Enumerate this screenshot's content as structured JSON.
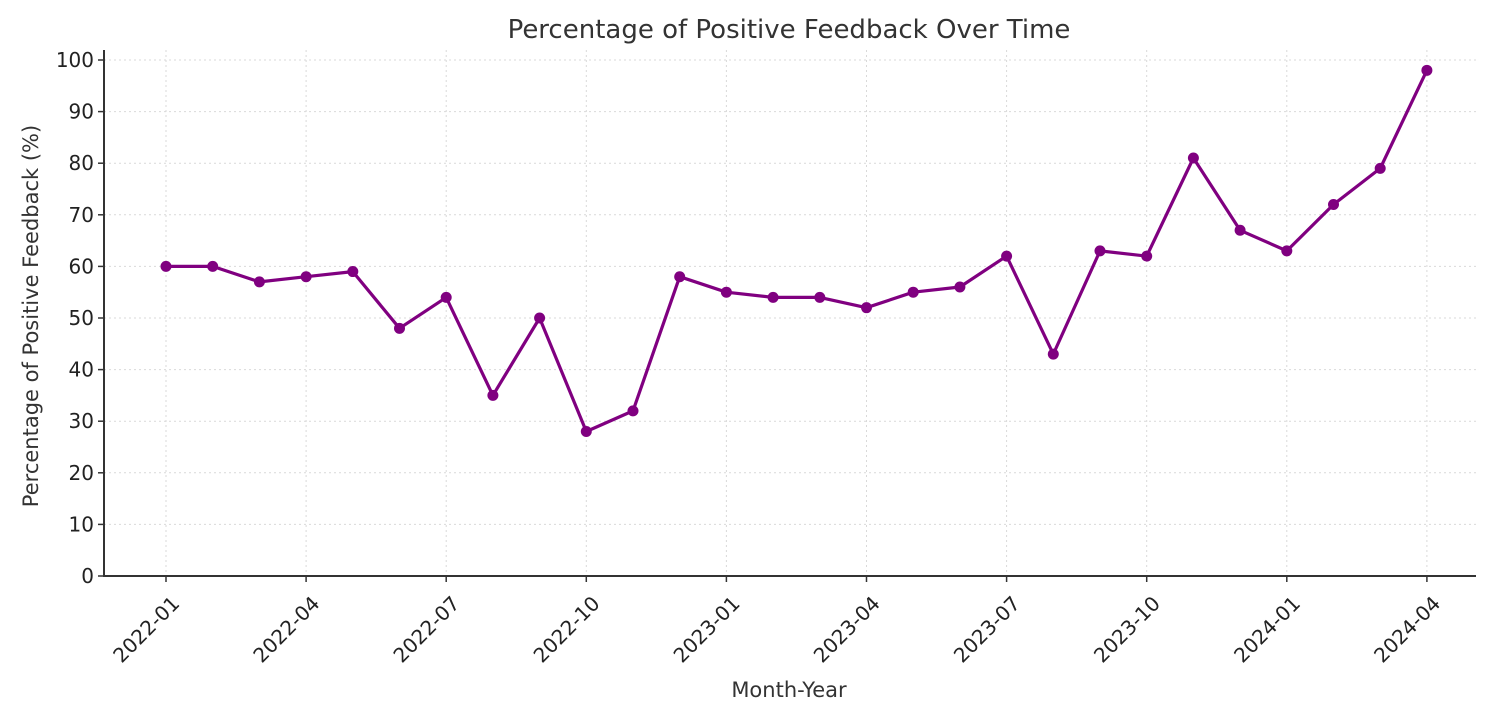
{
  "chart_data": {
    "type": "line",
    "title": "Percentage of Positive Feedback Over Time",
    "xlabel": "Month-Year",
    "ylabel": "Percentage of Positive Feedback (%)",
    "ylim": [
      0,
      100
    ],
    "yticks": [
      0,
      10,
      20,
      30,
      40,
      50,
      60,
      70,
      80,
      90,
      100
    ],
    "xticks": [
      "2022-01",
      "2022-04",
      "2022-07",
      "2022-10",
      "2023-01",
      "2023-04",
      "2023-07",
      "2023-10",
      "2024-01",
      "2024-04"
    ],
    "grid": true,
    "color": "#800080",
    "x": [
      "2022-01",
      "2022-02",
      "2022-03",
      "2022-04",
      "2022-05",
      "2022-06",
      "2022-07",
      "2022-08",
      "2022-09",
      "2022-10",
      "2022-11",
      "2022-12",
      "2023-01",
      "2023-02",
      "2023-03",
      "2023-04",
      "2023-05",
      "2023-06",
      "2023-07",
      "2023-08",
      "2023-09",
      "2023-10",
      "2023-11",
      "2023-12",
      "2024-01",
      "2024-02",
      "2024-03",
      "2024-04"
    ],
    "values": [
      60,
      60,
      57,
      58,
      59,
      48,
      54,
      35,
      50,
      28,
      32,
      58,
      55,
      54,
      54,
      52,
      55,
      56,
      62,
      43,
      63,
      62,
      81,
      67,
      63,
      72,
      79,
      98
    ]
  }
}
